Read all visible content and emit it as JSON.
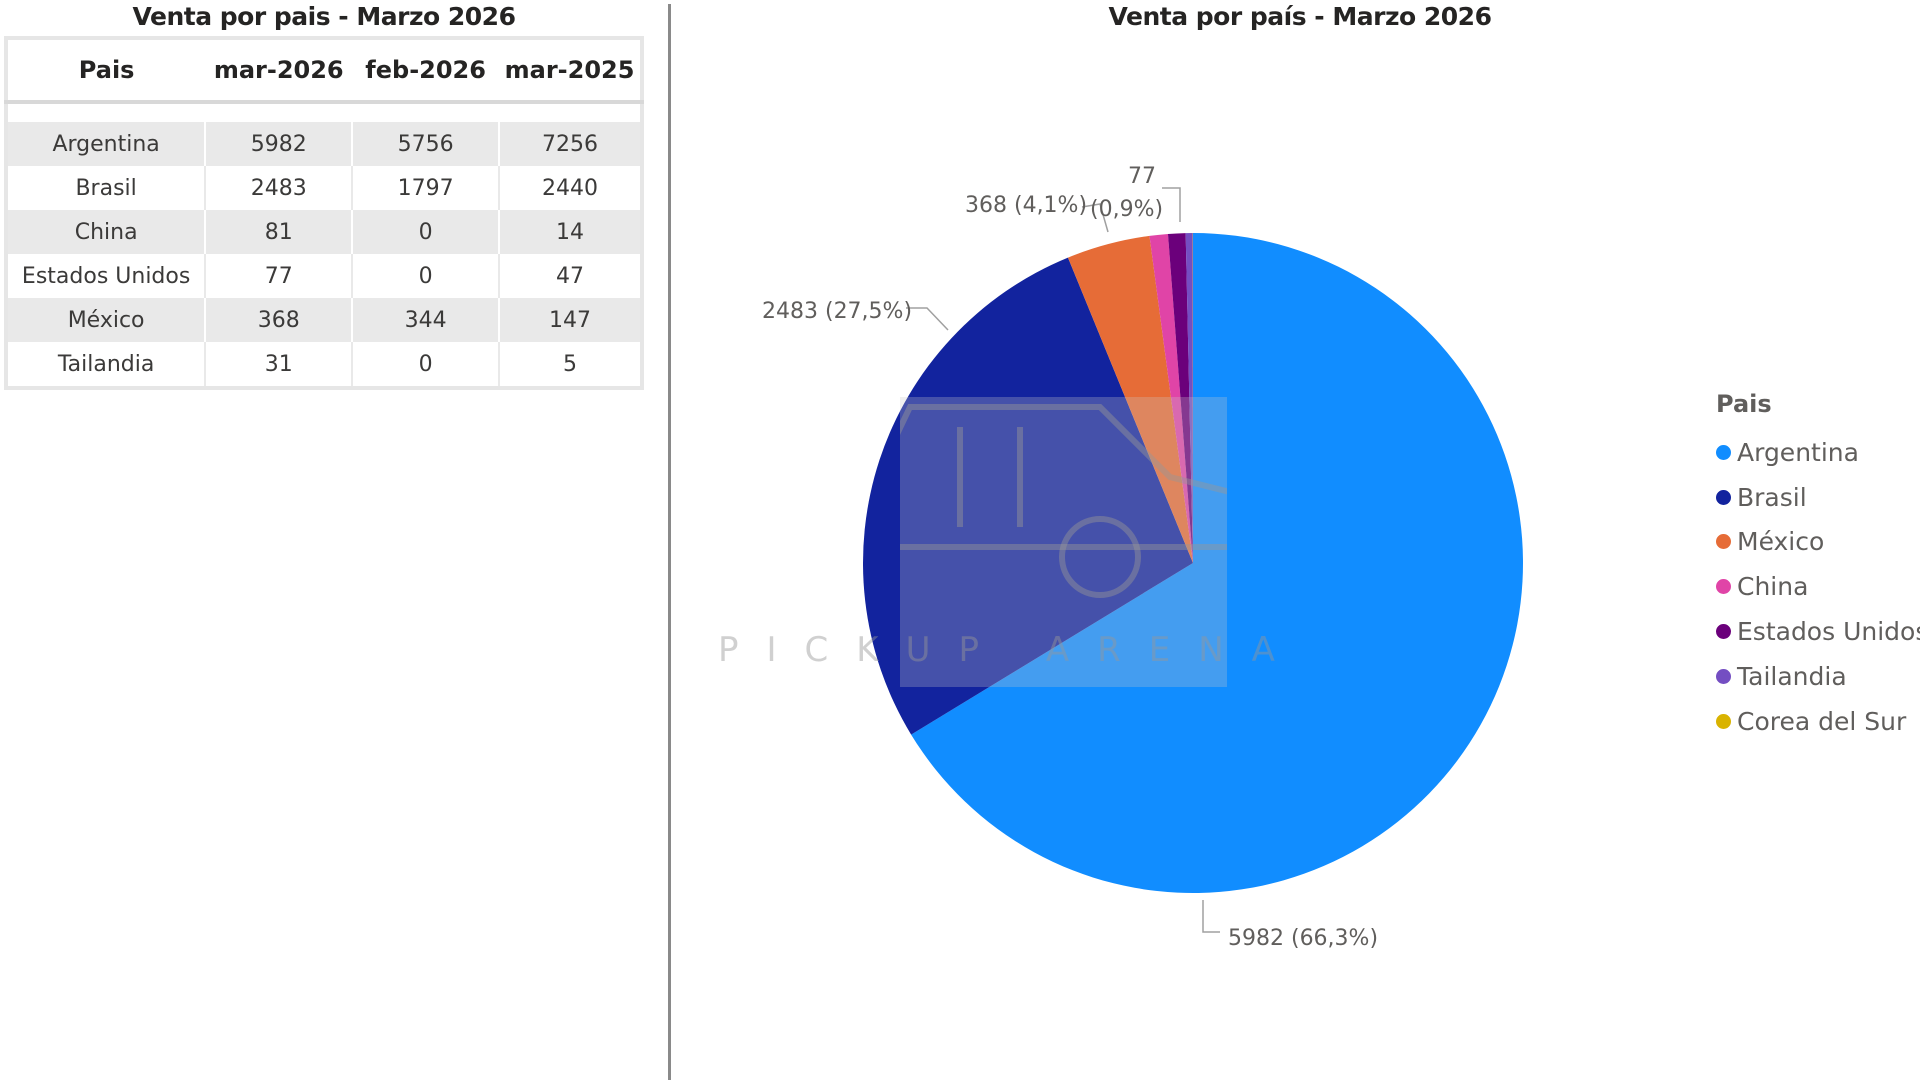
{
  "table": {
    "title": "Venta por pais - Marzo 2026",
    "headers": [
      "Pais",
      "mar-2026",
      "feb-2026",
      "mar-2025"
    ],
    "rows": [
      [
        "Argentina",
        "5982",
        "5756",
        "7256"
      ],
      [
        "Brasil",
        "2483",
        "1797",
        "2440"
      ],
      [
        "China",
        "81",
        "0",
        "14"
      ],
      [
        "Estados Unidos",
        "77",
        "0",
        "47"
      ],
      [
        "México",
        "368",
        "344",
        "147"
      ],
      [
        "Tailandia",
        "31",
        "0",
        "5"
      ]
    ]
  },
  "chart_data": {
    "type": "pie",
    "title": "Venta por país - Marzo 2026",
    "legend_title": "Pais",
    "legend_position": "right",
    "slices": [
      {
        "name": "Argentina",
        "value": 5982,
        "percent": 66.3,
        "color": "#118dff",
        "label": "5982 (66,3%)"
      },
      {
        "name": "Brasil",
        "value": 2483,
        "percent": 27.5,
        "color": "#12239e",
        "label": "2483 (27,5%)"
      },
      {
        "name": "México",
        "value": 368,
        "percent": 4.1,
        "color": "#e66c37",
        "label": "368 (4,1%)"
      },
      {
        "name": "China",
        "value": 81,
        "percent": 0.9,
        "color": "#e044a7",
        "label": ""
      },
      {
        "name": "Estados Unidos",
        "value": 77,
        "percent": 0.9,
        "color": "#6b007b",
        "label": "77 (0,9%)"
      },
      {
        "name": "Tailandia",
        "value": 31,
        "percent": 0.3,
        "color": "#744ec2",
        "label": ""
      },
      {
        "name": "Corea del Sur",
        "value": 1,
        "percent": 0.0,
        "color": "#d9b300",
        "label": ""
      }
    ],
    "legend": [
      "Argentina",
      "Brasil",
      "México",
      "China",
      "Estados Unidos",
      "Tailandia",
      "Corea del Sur"
    ]
  },
  "watermark": {
    "text": "PICKUP ARENA"
  }
}
